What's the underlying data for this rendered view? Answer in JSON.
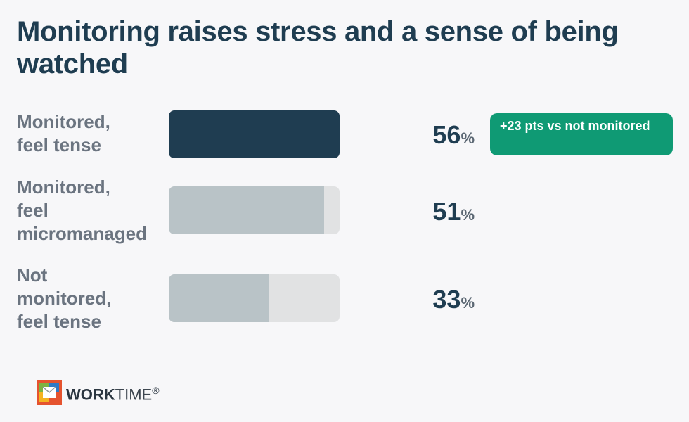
{
  "title": "Monitoring raises stress and a sense of being watched",
  "chart_data": {
    "type": "bar",
    "orientation": "horizontal",
    "categories": [
      "Monitored, feel tense",
      "Monitored, feel micromanaged",
      "Not monitored, feel tense"
    ],
    "values": [
      56,
      51,
      33
    ],
    "value_suffix": "%",
    "bar_colors": [
      "#1f3d51",
      "#b9c3c7",
      "#b9c3c7"
    ],
    "track_color": "#e1e2e3",
    "annotations": [
      {
        "category": "Monitored, feel tense",
        "text": "+23 pts vs not monitored",
        "color": "#0f9a74"
      }
    ]
  },
  "rows": [
    {
      "label_lines": [
        "Monitored,",
        "feel tense"
      ],
      "value": "56",
      "pct": "%",
      "badge": "+23 pts vs not monitored"
    },
    {
      "label_lines": [
        "Monitored,",
        "feel",
        "micromanaged"
      ],
      "value": "51",
      "pct": "%"
    },
    {
      "label_lines": [
        "Not",
        "monitored,",
        "feel tense"
      ],
      "value": "33",
      "pct": "%"
    }
  ],
  "footer": {
    "logo_bold": "WORK",
    "logo_light": "TIME",
    "logo_mark": "®",
    "logo_icon": "worktime-logo-icon"
  }
}
